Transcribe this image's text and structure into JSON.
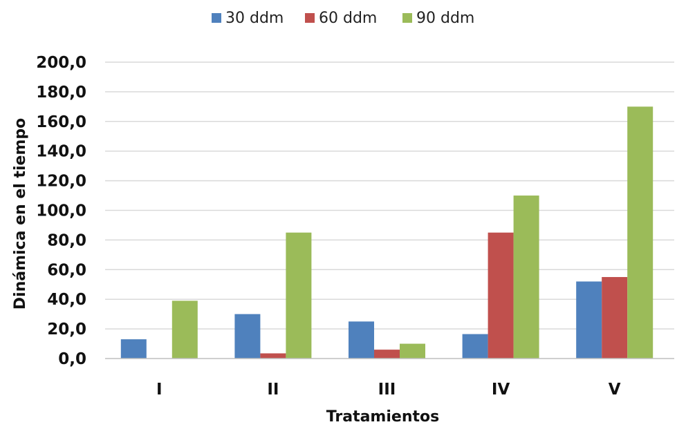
{
  "chart_data": {
    "type": "bar",
    "title": "",
    "xlabel": "Tratamientos",
    "ylabel": "Dinámica en el tiempo",
    "categories": [
      "I",
      "II",
      "III",
      "IV",
      "V"
    ],
    "series": [
      {
        "name": "30 ddm",
        "color": "#4F81BD",
        "values": [
          13,
          30,
          25,
          16.5,
          52
        ]
      },
      {
        "name": "60 ddm",
        "color": "#C0504D",
        "values": [
          0,
          3.5,
          6,
          85,
          55
        ]
      },
      {
        "name": "90 ddm",
        "color": "#9BBB59",
        "values": [
          39,
          85,
          10,
          110,
          170
        ]
      }
    ],
    "ylim": [
      0,
      200
    ],
    "yticks": [
      "0,0",
      "20,0",
      "40,0",
      "60,0",
      "80,0",
      "100,0",
      "120,0",
      "140,0",
      "160,0",
      "180,0",
      "200,0"
    ],
    "grid": true,
    "legend_position": "top"
  }
}
